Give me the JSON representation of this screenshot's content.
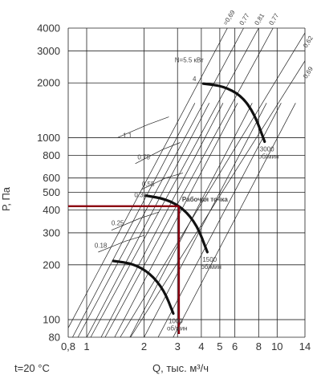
{
  "chart_data": {
    "type": "line",
    "title": "",
    "xlabel": "Q, тыс. м³/ч",
    "ylabel": "Р, Па",
    "x_scale": "log",
    "y_scale": "log",
    "xlim": [
      0.8,
      14
    ],
    "ylim": [
      80,
      4000
    ],
    "x_ticks": [
      0.8,
      1,
      2,
      3,
      4,
      5,
      6,
      8,
      10,
      14
    ],
    "x_tick_labels": [
      "0,8",
      "1",
      "2",
      "3",
      "4",
      "5",
      "6",
      "8",
      "10",
      "14"
    ],
    "y_ticks": [
      80,
      100,
      200,
      300,
      400,
      500,
      600,
      800,
      1000,
      2000,
      3000,
      4000
    ],
    "y_tick_labels": [
      "80",
      "100",
      "200",
      "300",
      "400",
      "500",
      "600",
      "800",
      "1000",
      "2000",
      "3000",
      "4000"
    ],
    "grid": true,
    "temperature_note": "t=20 °C",
    "power_prefix": "N",
    "power_suffix": "=5.5 кВт",
    "speed_curves": [
      {
        "label_num": "3000",
        "label_unit": "об/мин",
        "x": [
          4.1,
          5.2,
          6.5,
          7.6,
          8.6
        ],
        "y": [
          1980,
          1920,
          1700,
          1350,
          950
        ]
      },
      {
        "label_num": "1500",
        "label_unit": "об/мин",
        "x": [
          2.05,
          2.6,
          3.2,
          3.8,
          4.3
        ],
        "y": [
          480,
          460,
          410,
          330,
          235
        ]
      },
      {
        "label_num": "1000",
        "label_unit": "об/мин",
        "x": [
          1.38,
          1.75,
          2.15,
          2.55,
          2.85
        ],
        "y": [
          210,
          203,
          180,
          145,
          108
        ]
      }
    ],
    "power_labels": [
      {
        "text": "4",
        "x": 3.6,
        "y": 2050
      },
      {
        "text": "1.1",
        "x": 1.55,
        "y": 1000
      },
      {
        "text": "0.75",
        "x": 1.85,
        "y": 760
      },
      {
        "text": "0.55",
        "x": 1.95,
        "y": 540
      },
      {
        "text": "0.37",
        "x": 1.78,
        "y": 470
      },
      {
        "text": "0.25",
        "x": 1.35,
        "y": 330
      },
      {
        "text": "0.18",
        "x": 1.1,
        "y": 248
      }
    ],
    "efficiency_lines": [
      {
        "label": "0,69",
        "angle_label": "=0,69",
        "x1": 0.8,
        "y1": 90,
        "x2": 5.75,
        "y2": 4400
      },
      {
        "label": "0,77",
        "x1": 0.9,
        "y1": 80,
        "x2": 7.0,
        "y2": 4400
      },
      {
        "label": "0,81",
        "x1": 1.05,
        "y1": 80,
        "x2": 8.4,
        "y2": 4400
      },
      {
        "label": "0,77",
        "x1": 1.25,
        "y1": 80,
        "x2": 10.0,
        "y2": 4400
      },
      {
        "label": "0,62",
        "x1": 1.5,
        "y1": 80,
        "x2": 14.5,
        "y2": 4000
      },
      {
        "label": "0,69",
        "x1": 1.7,
        "y1": 80,
        "x2": 14.5,
        "y2": 2800
      }
    ],
    "fan_system_lines": [
      {
        "x1": 0.8,
        "y1": 72,
        "x2": 3.7,
        "y2": 1550
      },
      {
        "x1": 0.95,
        "y1": 72,
        "x2": 4.4,
        "y2": 1550
      },
      {
        "x1": 1.13,
        "y1": 72,
        "x2": 5.2,
        "y2": 1550
      },
      {
        "x1": 1.33,
        "y1": 72,
        "x2": 6.2,
        "y2": 1550
      },
      {
        "x1": 1.6,
        "y1": 72,
        "x2": 7.4,
        "y2": 1550
      },
      {
        "x1": 1.9,
        "y1": 72,
        "x2": 8.8,
        "y2": 1550
      },
      {
        "x1": 2.25,
        "y1": 72,
        "x2": 10.5,
        "y2": 1550
      },
      {
        "x1": 2.7,
        "y1": 72,
        "x2": 12.5,
        "y2": 1550
      }
    ],
    "operating_point": {
      "label": "Рабочая точка",
      "x": 3.05,
      "y": 420
    }
  }
}
